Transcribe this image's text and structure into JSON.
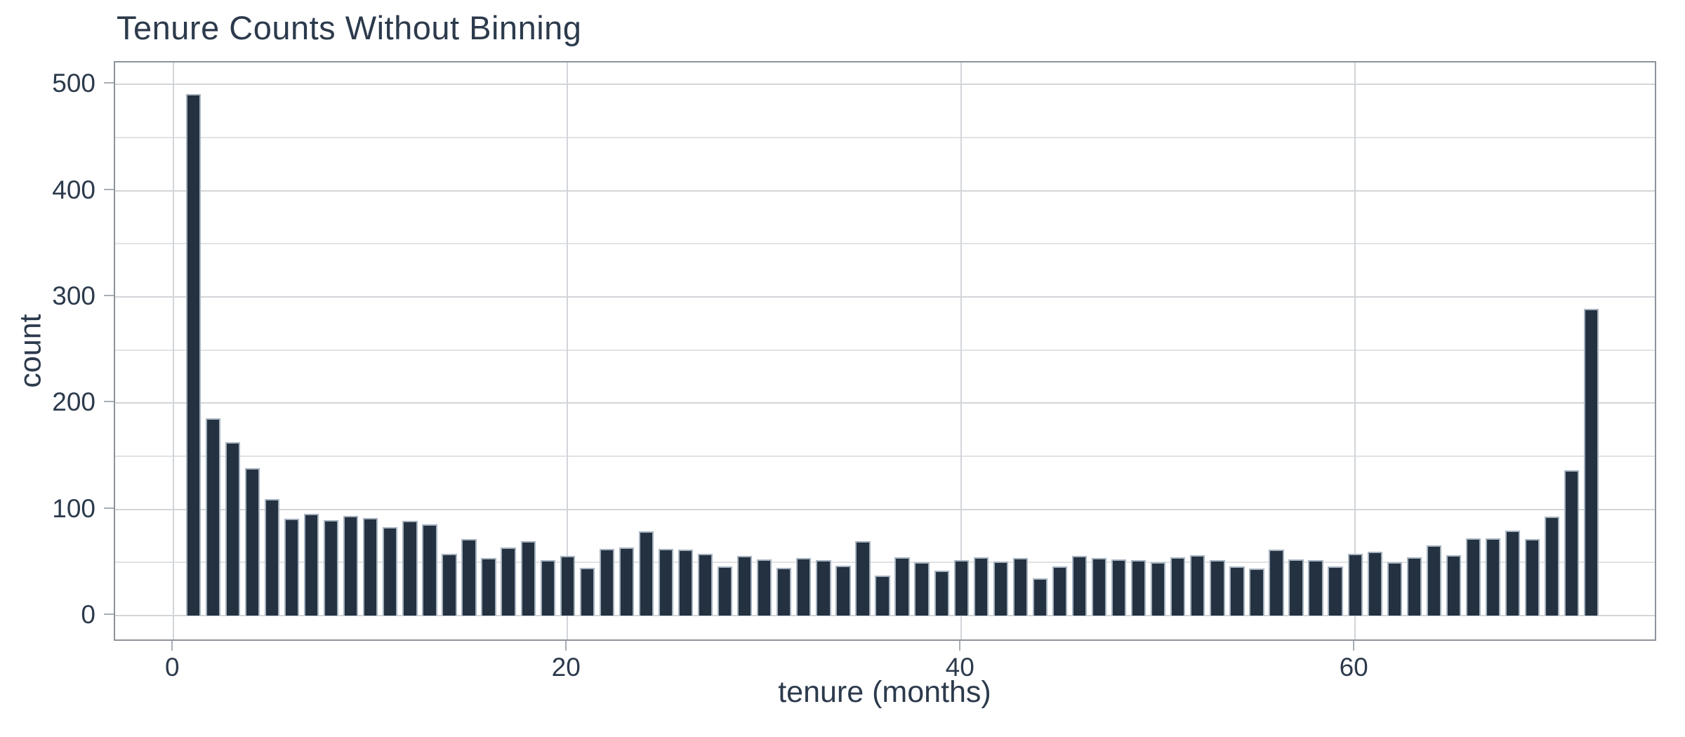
{
  "page": {
    "title": "Tenure Counts Without Binning"
  },
  "chart_data": {
    "type": "bar",
    "title": "Tenure Counts Without Binning",
    "xlabel": "tenure (months)",
    "ylabel": "count",
    "x": [
      1,
      2,
      3,
      4,
      5,
      6,
      7,
      8,
      9,
      10,
      11,
      12,
      13,
      14,
      15,
      16,
      17,
      18,
      19,
      20,
      21,
      22,
      23,
      24,
      25,
      26,
      27,
      28,
      29,
      30,
      31,
      32,
      33,
      34,
      35,
      36,
      37,
      38,
      39,
      40,
      41,
      42,
      43,
      44,
      45,
      46,
      47,
      48,
      49,
      50,
      51,
      52,
      53,
      54,
      55,
      56,
      57,
      58,
      59,
      60,
      61,
      62,
      63,
      64,
      65,
      66,
      67,
      68,
      69,
      70,
      71,
      72
    ],
    "values": [
      491,
      186,
      163,
      139,
      110,
      91,
      96,
      90,
      94,
      92,
      83,
      89,
      86,
      58,
      72,
      54,
      64,
      70,
      52,
      56,
      45,
      63,
      64,
      79,
      63,
      62,
      58,
      46,
      56,
      53,
      45,
      54,
      52,
      47,
      70,
      38,
      55,
      50,
      42,
      52,
      55,
      51,
      54,
      35,
      46,
      56,
      54,
      53,
      52,
      50,
      55,
      57,
      52,
      46,
      44,
      62,
      53,
      52,
      46,
      58,
      60,
      50,
      55,
      66,
      57,
      73,
      73,
      80,
      72,
      93,
      137,
      289
    ],
    "bar_width": 0.76,
    "xlim": [
      -2.97,
      75.36
    ],
    "ylim": [
      -25.1,
      520.7
    ],
    "x_ticks": [
      0,
      20,
      40,
      60
    ],
    "y_ticks": [
      0,
      100,
      200,
      300,
      400,
      500
    ],
    "y_minor_ticks": [
      50,
      150,
      250,
      350,
      450
    ],
    "grid": true,
    "legend_position": "none",
    "colors": {
      "bar_fill": "#243140",
      "bar_edge": "#a6b2bf",
      "grid_major": "#d2d5d9",
      "grid_minor": "#e0e2e5",
      "panel_border": "#8d939a",
      "tick_mark": "#a9aeb4",
      "text": "#2c3a4c",
      "background": "#ffffff"
    }
  }
}
